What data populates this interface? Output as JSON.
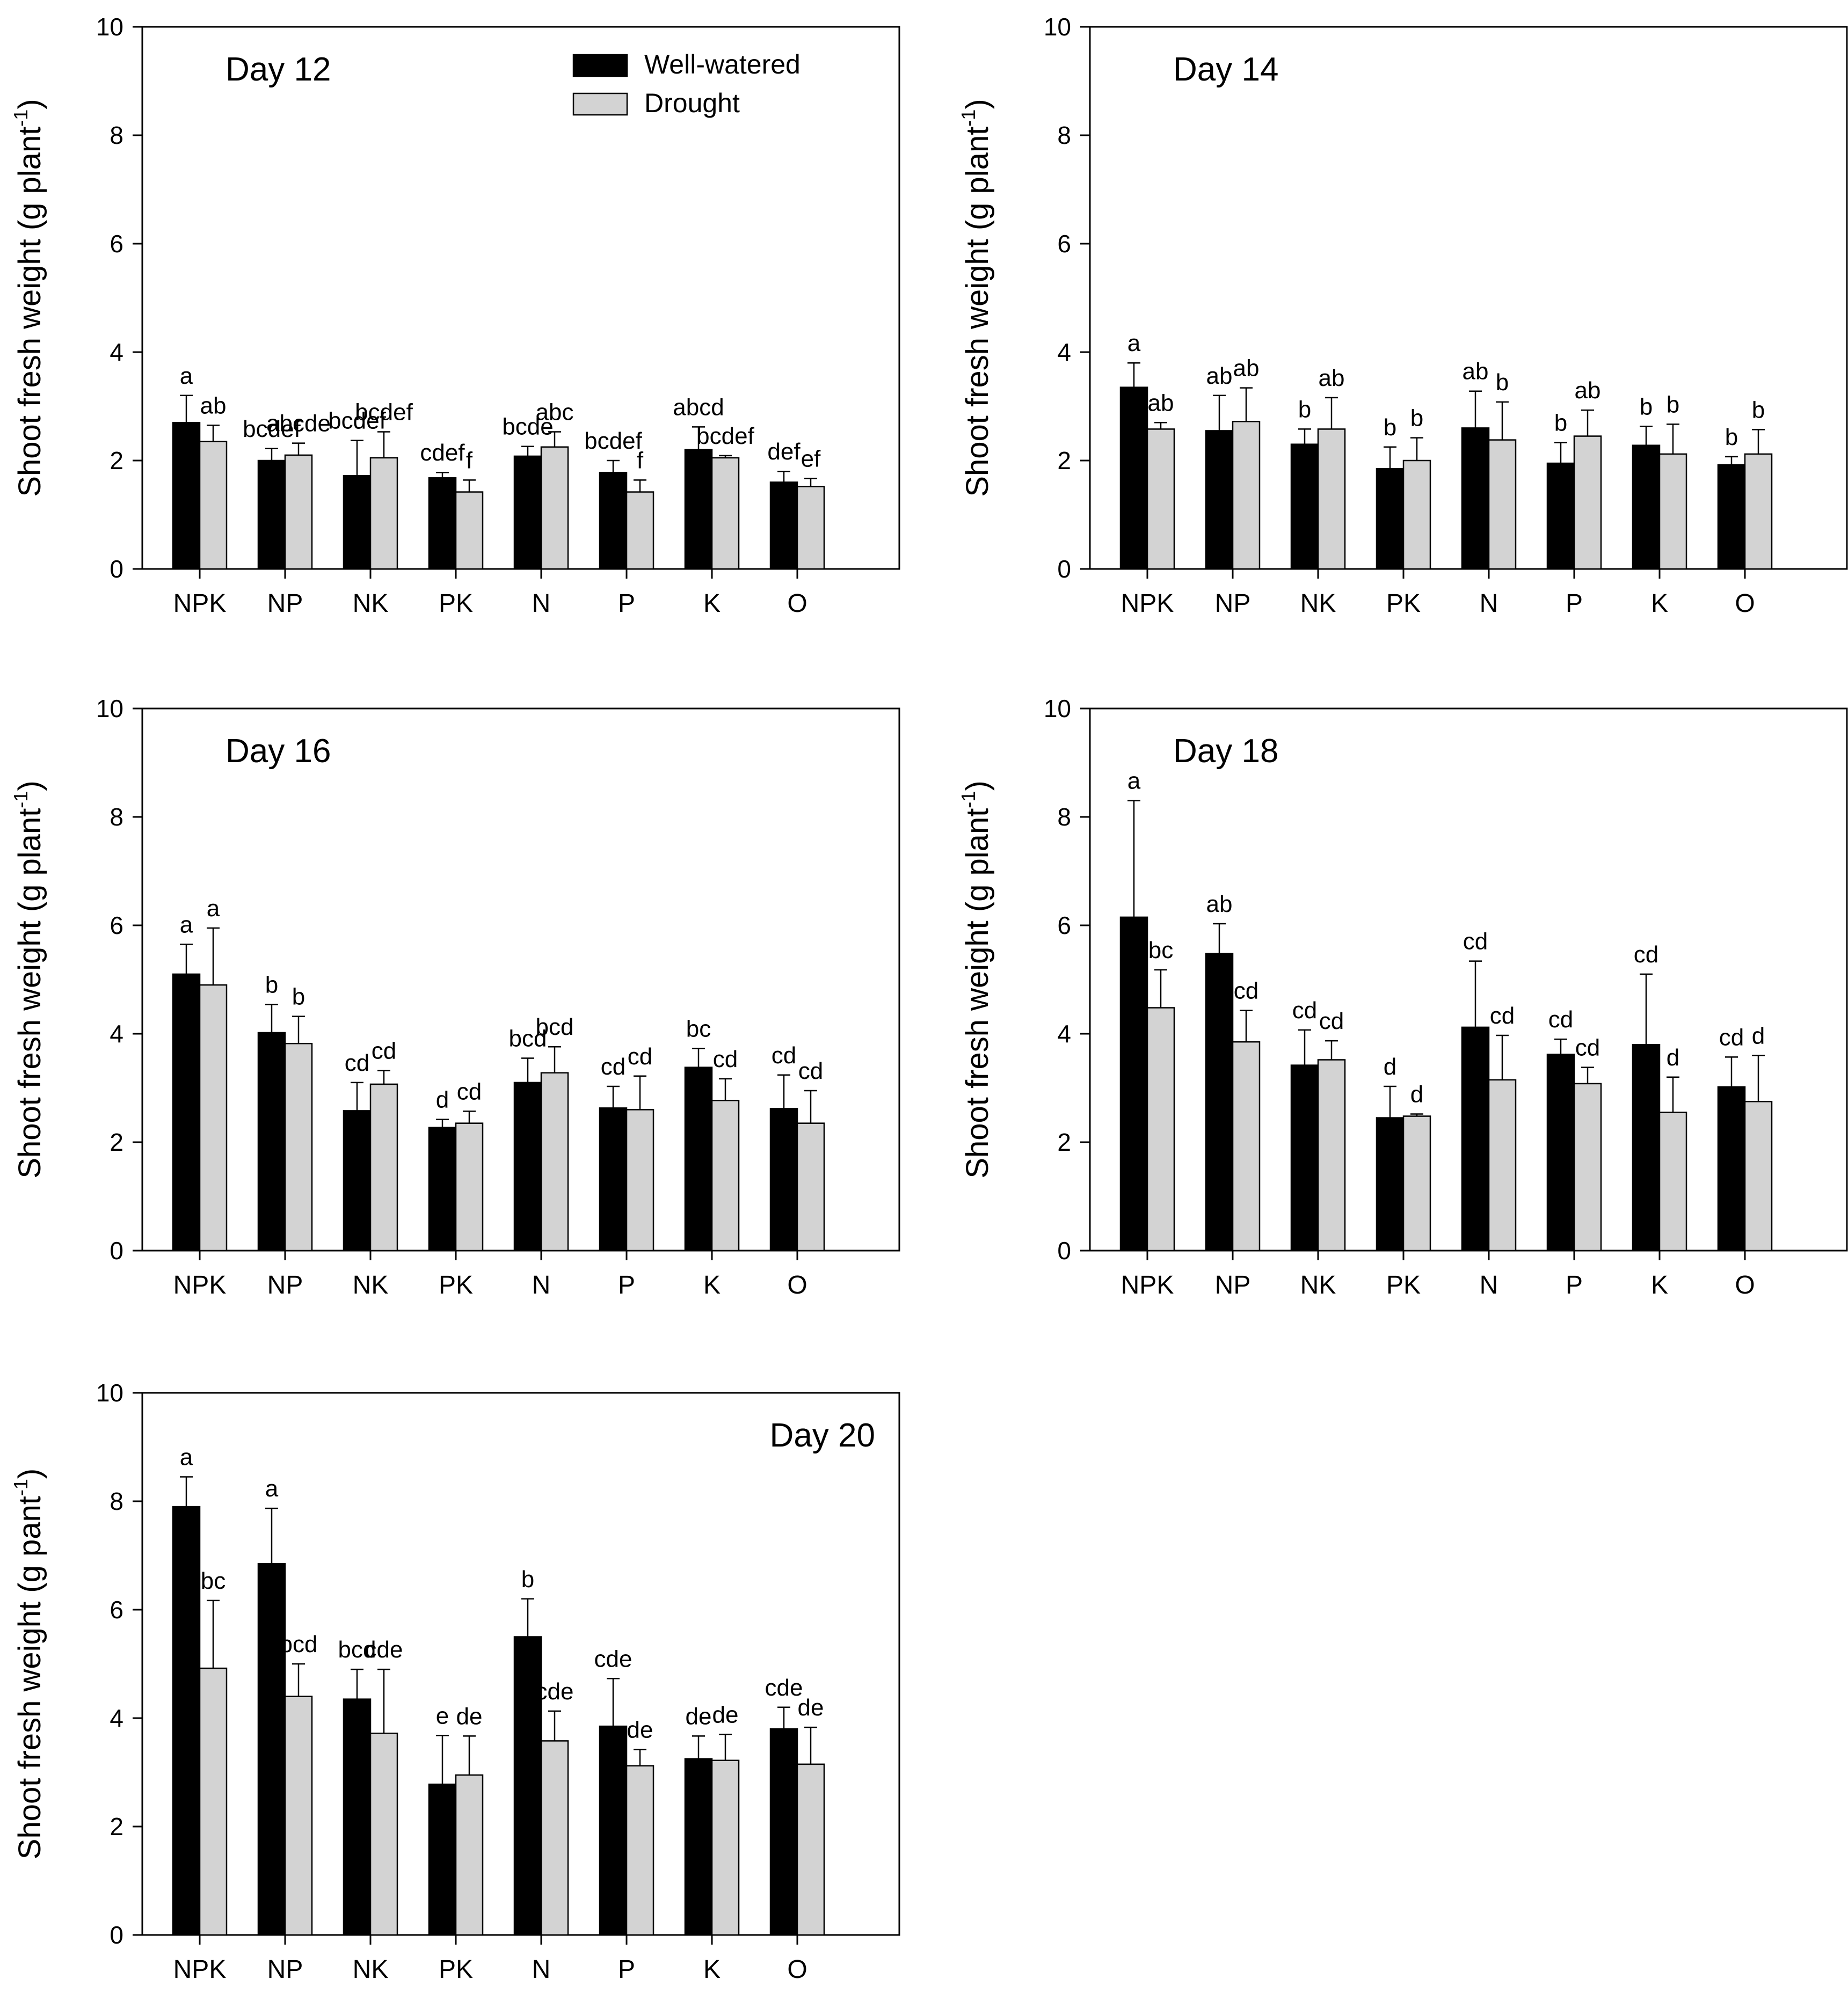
{
  "colors": {
    "well_watered": "#000000",
    "drought": "#d3d3d3",
    "frame": "#000000",
    "background": "#ffffff"
  },
  "chart_data": [
    {
      "type": "bar",
      "title": "Day 12",
      "title_position": "top-left",
      "ylabel": "Shoot fresh weight (g plant",
      "ylabel_superscript": "-1",
      "ylim": [
        0,
        10
      ],
      "yticks": [
        "0",
        "2",
        "4",
        "6",
        "8",
        "10"
      ],
      "categories": [
        "NPK",
        "NP",
        "NK",
        "PK",
        "N",
        "P",
        "K",
        "O"
      ],
      "legend": [
        "Well-watered",
        "Drought"
      ],
      "legend_position": "top-center",
      "series": [
        {
          "name": "Well-watered",
          "values": [
            2.7,
            2.0,
            1.72,
            1.68,
            2.08,
            1.78,
            2.2,
            1.6
          ],
          "errors": [
            0.5,
            0.22,
            0.65,
            0.1,
            0.18,
            0.22,
            0.42,
            0.2
          ],
          "letters": [
            "a",
            "bcdef",
            "bcdef",
            "cdef",
            "bcde",
            "bcdef",
            "abcd",
            "def"
          ]
        },
        {
          "name": "Drought",
          "values": [
            2.35,
            2.1,
            2.05,
            1.42,
            2.25,
            1.42,
            2.05,
            1.52
          ],
          "errors": [
            0.3,
            0.22,
            0.48,
            0.22,
            0.28,
            0.22,
            0.04,
            0.15
          ],
          "letters": [
            "ab",
            "abcde",
            "bcdef",
            "f",
            "abc",
            "f",
            "bcdef",
            "ef"
          ]
        }
      ]
    },
    {
      "type": "bar",
      "title": "Day 14",
      "title_position": "top-left",
      "ylabel": "Shoot fresh weight (g plant",
      "ylabel_superscript": "-1",
      "ylim": [
        0,
        10
      ],
      "yticks": [
        "0",
        "2",
        "4",
        "6",
        "8",
        "10"
      ],
      "categories": [
        "NPK",
        "NP",
        "NK",
        "PK",
        "N",
        "P",
        "K",
        "O"
      ],
      "series": [
        {
          "name": "Well-watered",
          "values": [
            3.35,
            2.55,
            2.3,
            1.85,
            2.6,
            1.95,
            2.28,
            1.92
          ],
          "errors": [
            0.45,
            0.65,
            0.28,
            0.4,
            0.68,
            0.38,
            0.35,
            0.15
          ],
          "letters": [
            "a",
            "ab",
            "b",
            "b",
            "ab",
            "b",
            "b",
            "b"
          ]
        },
        {
          "name": "Drought",
          "values": [
            2.58,
            2.72,
            2.58,
            2.0,
            2.38,
            2.45,
            2.12,
            2.12
          ],
          "errors": [
            0.12,
            0.62,
            0.58,
            0.42,
            0.7,
            0.48,
            0.55,
            0.45
          ],
          "letters": [
            "ab",
            "ab",
            "ab",
            "b",
            "b",
            "ab",
            "b",
            "b"
          ]
        }
      ]
    },
    {
      "type": "bar",
      "title": "Day 16",
      "title_position": "top-left",
      "ylabel": "Shoot fresh weight (g plant",
      "ylabel_superscript": "-1",
      "ylim": [
        0,
        10
      ],
      "yticks": [
        "0",
        "2",
        "4",
        "6",
        "8",
        "10"
      ],
      "categories": [
        "NPK",
        "NP",
        "NK",
        "PK",
        "N",
        "P",
        "K",
        "O"
      ],
      "series": [
        {
          "name": "Well-watered",
          "values": [
            5.1,
            4.02,
            2.58,
            2.27,
            3.1,
            2.63,
            3.38,
            2.62
          ],
          "errors": [
            0.55,
            0.52,
            0.52,
            0.15,
            0.45,
            0.4,
            0.35,
            0.62
          ],
          "letters": [
            "a",
            "b",
            "cd",
            "d",
            "bcd",
            "cd",
            "bc",
            "cd"
          ]
        },
        {
          "name": "Drought",
          "values": [
            4.9,
            3.82,
            3.07,
            2.35,
            3.28,
            2.6,
            2.77,
            2.35
          ],
          "errors": [
            1.05,
            0.5,
            0.25,
            0.22,
            0.48,
            0.62,
            0.4,
            0.6
          ],
          "letters": [
            "a",
            "b",
            "cd",
            "cd",
            "bcd",
            "cd",
            "cd",
            "cd"
          ]
        }
      ]
    },
    {
      "type": "bar",
      "title": "Day 18",
      "title_position": "top-left",
      "ylabel": "Shoot fresh weight (g plant",
      "ylabel_superscript": "-1",
      "ylim": [
        0,
        10
      ],
      "yticks": [
        "0",
        "2",
        "4",
        "6",
        "8",
        "10"
      ],
      "categories": [
        "NPK",
        "NP",
        "NK",
        "PK",
        "N",
        "P",
        "K",
        "O"
      ],
      "series": [
        {
          "name": "Well-watered",
          "values": [
            6.15,
            5.48,
            3.42,
            2.45,
            4.12,
            3.62,
            3.8,
            3.02
          ],
          "errors": [
            2.15,
            0.55,
            0.65,
            0.58,
            1.22,
            0.28,
            1.3,
            0.55
          ],
          "letters": [
            "a",
            "ab",
            "cd",
            "d",
            "cd",
            "cd",
            "cd",
            "cd"
          ]
        },
        {
          "name": "Drought",
          "values": [
            4.48,
            3.85,
            3.52,
            2.48,
            3.15,
            3.08,
            2.55,
            2.75
          ],
          "errors": [
            0.7,
            0.58,
            0.35,
            0.04,
            0.82,
            0.3,
            0.65,
            0.85
          ],
          "letters": [
            "bc",
            "cd",
            "cd",
            "d",
            "cd",
            "cd",
            "d",
            "d"
          ]
        }
      ]
    },
    {
      "type": "bar",
      "title": "Day 20",
      "title_position": "top-right",
      "ylabel": "Shoot fresh weight (g pant",
      "ylabel_superscript": "-1",
      "ylim": [
        0,
        10
      ],
      "yticks": [
        "0",
        "2",
        "4",
        "6",
        "8",
        "10"
      ],
      "categories": [
        "NPK",
        "NP",
        "NK",
        "PK",
        "N",
        "P",
        "K",
        "O"
      ],
      "series": [
        {
          "name": "Well-watered",
          "values": [
            7.9,
            6.85,
            4.35,
            2.78,
            5.5,
            3.85,
            3.25,
            3.8
          ],
          "errors": [
            0.55,
            1.02,
            0.55,
            0.9,
            0.7,
            0.88,
            0.42,
            0.4
          ],
          "letters": [
            "a",
            "a",
            "bcd",
            "e",
            "b",
            "cde",
            "de",
            "cde"
          ]
        },
        {
          "name": "Drought",
          "values": [
            4.92,
            4.4,
            3.72,
            2.95,
            3.58,
            3.12,
            3.22,
            3.15
          ],
          "errors": [
            1.25,
            0.6,
            1.18,
            0.72,
            0.55,
            0.3,
            0.48,
            0.68
          ],
          "letters": [
            "bc",
            "bcd",
            "cde",
            "de",
            "cde",
            "de",
            "de",
            "de"
          ]
        }
      ]
    }
  ]
}
